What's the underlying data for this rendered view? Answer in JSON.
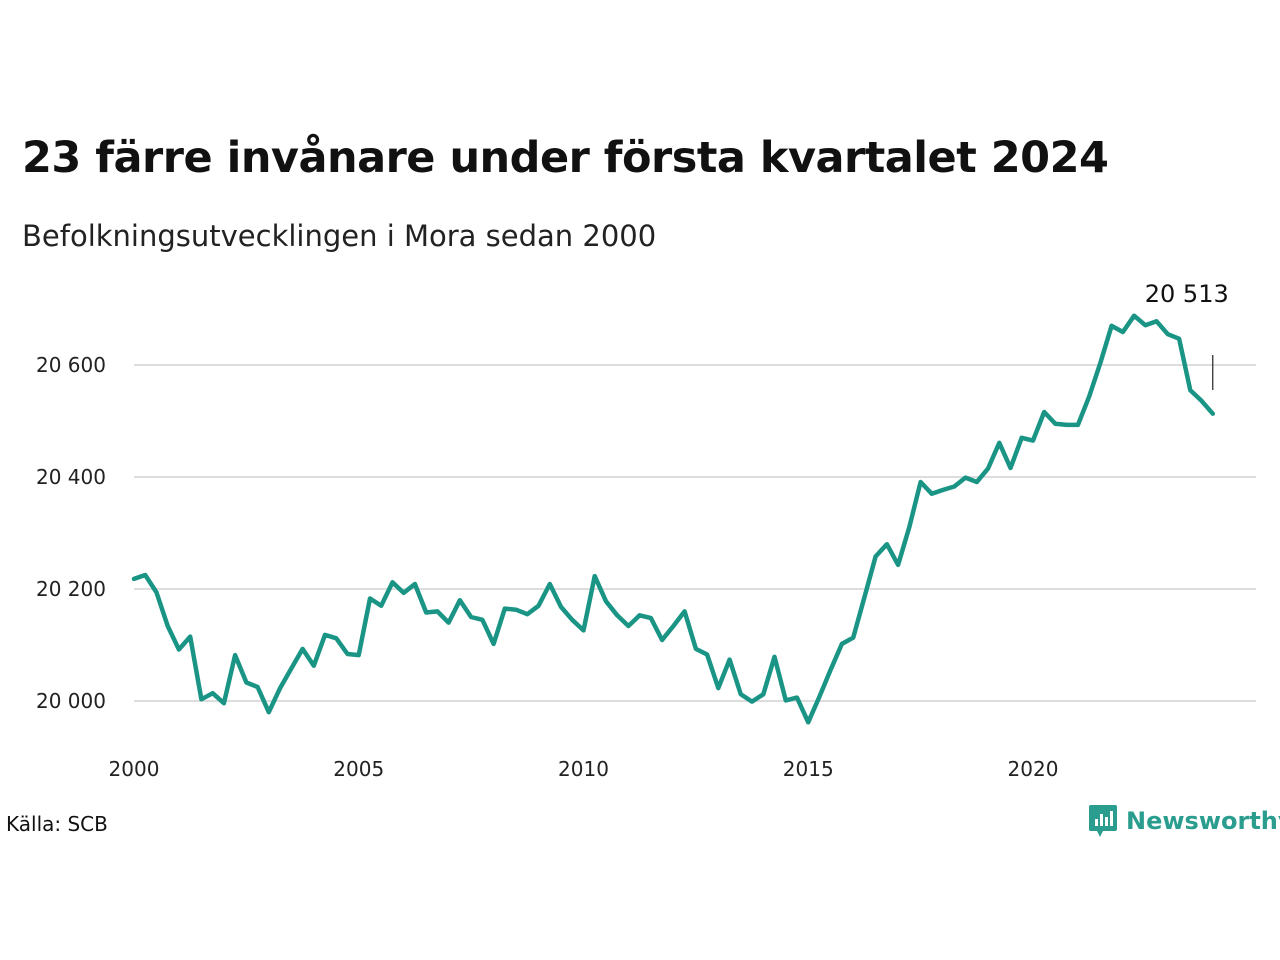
{
  "title": "23 färre invånare under första kvartalet 2024",
  "subtitle": "Befolkningsutvecklingen i Mora sedan 2000",
  "source": "Källa: SCB",
  "brand": {
    "name": "Newsworthy",
    "icon": "newsworthy-logo-icon",
    "color": "#2a9d8f"
  },
  "chart_data": {
    "type": "line",
    "title": "23 färre invånare under första kvartalet 2024",
    "subtitle": "Befolkningsutvecklingen i Mora sedan 2000",
    "xlabel": "",
    "ylabel": "",
    "x_ticks": [
      2000,
      2005,
      2010,
      2015,
      2020
    ],
    "y_ticks": [
      20000,
      20200,
      20400,
      20600
    ],
    "y_tick_labels": [
      "20 000",
      "20 200",
      "20 400",
      "20 600"
    ],
    "xlim": [
      2000,
      2025.0
    ],
    "ylim": [
      19920,
      20700
    ],
    "grid": true,
    "line_color": "#1a9585",
    "last_value_label": "20 513",
    "series": [
      {
        "x": [
          2000.0,
          2000.25,
          2000.5,
          2000.75,
          2001.0,
          2001.25,
          2001.5,
          2001.75,
          2002.0,
          2002.25,
          2002.5,
          2002.75,
          2003.0,
          2003.25,
          2003.5,
          2003.75,
          2004.0,
          2004.25,
          2004.5,
          2004.75,
          2005.0,
          2005.25,
          2005.5,
          2005.75,
          2006.0,
          2006.25,
          2006.5,
          2006.75,
          2007.0,
          2007.25,
          2007.5,
          2007.75,
          2008.0,
          2008.25,
          2008.5,
          2008.75,
          2009.0,
          2009.25,
          2009.5,
          2009.75,
          2010.0,
          2010.25,
          2010.5,
          2010.75,
          2011.0,
          2011.25,
          2011.5,
          2011.75,
          2012.0,
          2012.25,
          2012.5,
          2012.75,
          2013.0,
          2013.25,
          2013.5,
          2013.75,
          2014.0,
          2014.25,
          2014.5,
          2014.75,
          2015.0,
          2015.25,
          2015.5,
          2015.75,
          2016.0,
          2016.25,
          2016.5,
          2016.75,
          2017.0,
          2017.25,
          2017.5,
          2017.75,
          2018.0,
          2018.25,
          2018.5,
          2018.75,
          2019.0,
          2019.25,
          2019.5,
          2019.75,
          2020.0,
          2020.25,
          2020.5,
          2020.75,
          2021.0,
          2021.25,
          2021.5,
          2021.75,
          2022.0,
          2022.25,
          2022.5,
          2022.75,
          2023.0,
          2023.25,
          2023.5,
          2023.75,
          2024.0
        ],
        "values": [
          20218,
          20225,
          20194,
          20134,
          20092,
          20115,
          20003,
          20014,
          19996,
          20082,
          20033,
          20025,
          19980,
          20023,
          20058,
          20093,
          20063,
          20118,
          20112,
          20084,
          20082,
          20183,
          20170,
          20212,
          20193,
          20209,
          20158,
          20160,
          20140,
          20180,
          20150,
          20145,
          20102,
          20165,
          20163,
          20155,
          20170,
          20209,
          20168,
          20145,
          20126,
          20223,
          20178,
          20153,
          20134,
          20153,
          20148,
          20109,
          20134,
          20160,
          20093,
          20083,
          20023,
          20074,
          20012,
          19999,
          20012,
          20079,
          20001,
          20006,
          19962,
          20008,
          20056,
          20102,
          20113,
          20185,
          20258,
          20280,
          20243,
          20311,
          20391,
          20370,
          20377,
          20383,
          20399,
          20391,
          20415,
          20461,
          20416,
          20470,
          20465,
          20516,
          20495,
          20493,
          20493,
          20544,
          20604,
          20670,
          20659,
          20688,
          20671,
          20678,
          20655,
          20647,
          20555,
          20536,
          20513
        ]
      }
    ]
  }
}
